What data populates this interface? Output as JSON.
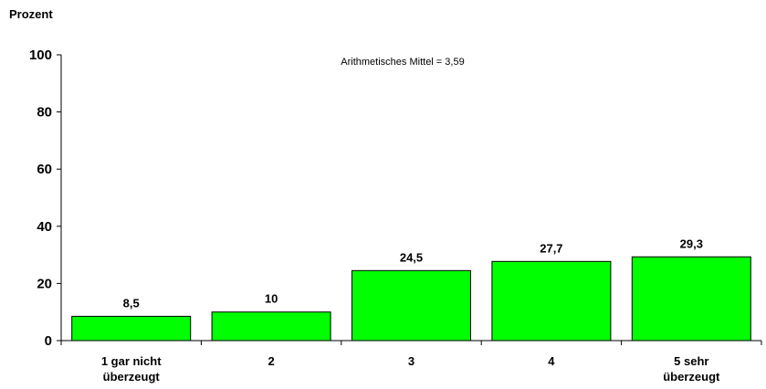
{
  "chart_data": {
    "type": "bar",
    "ylabel": "Prozent",
    "annotation": "Arithmetisches Mittel = 3,59",
    "ylim": [
      0,
      100
    ],
    "yticks": [
      0,
      20,
      40,
      60,
      80,
      100
    ],
    "categories": [
      [
        "1 gar nicht",
        "überzeugt"
      ],
      [
        "2"
      ],
      [
        "3"
      ],
      [
        "4"
      ],
      [
        "5 sehr",
        "überzeugt"
      ]
    ],
    "values": [
      8.5,
      10,
      24.5,
      27.7,
      29.3
    ],
    "value_labels": [
      "8,5",
      "10",
      "24,5",
      "27,7",
      "29,3"
    ],
    "bar_color": "#00ff00",
    "grid": false,
    "legend": "none"
  }
}
